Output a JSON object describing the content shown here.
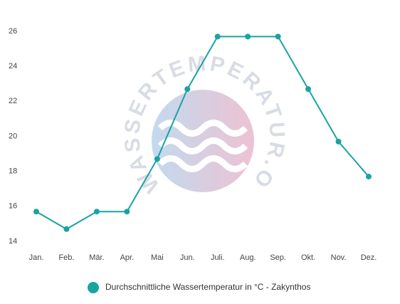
{
  "chart_data": {
    "type": "line",
    "watermark": "WASSERTEMPERATUR.ORG",
    "categories": [
      "Jan.",
      "Feb.",
      "Mär.",
      "Apr.",
      "Mai",
      "Jun.",
      "Juli.",
      "Aug.",
      "Sep.",
      "Okt.",
      "Nov.",
      "Dez."
    ],
    "series": [
      {
        "name": "Durchschnittliche Wassertemperatur in °C - Zakynthos",
        "color": "#1aa3a3",
        "values": [
          15.7,
          14.7,
          15.7,
          15.7,
          18.7,
          22.7,
          25.7,
          25.7,
          25.7,
          22.7,
          19.7,
          17.7
        ]
      }
    ],
    "ylim": [
      14,
      26
    ],
    "yticks": [
      14,
      16,
      18,
      20,
      22,
      24,
      26
    ],
    "grid": false,
    "legend": "bottom"
  }
}
